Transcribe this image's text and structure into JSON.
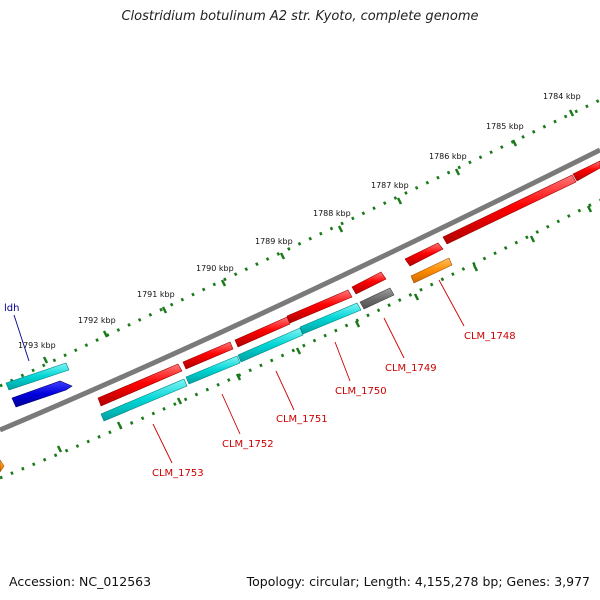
{
  "title": "Clostridium botulinum A2 str. Kyoto, complete genome",
  "footer": {
    "accession": "Accession: NC_012563",
    "topology": "Topology: circular; Length: 4,155,278 bp; Genes: 3,977"
  },
  "ticks": [
    "1784 kbp",
    "1785 kbp",
    "1786 kbp",
    "1787 kbp",
    "1788 kbp",
    "1789 kbp",
    "1790 kbp",
    "1791 kbp",
    "1792 kbp",
    "1793 kbp"
  ],
  "genes": [
    {
      "label": "CLM_1748",
      "color": "#ff8c00",
      "feature": "CDS"
    },
    {
      "label": "CLM_1749",
      "color": "#707070",
      "feature": "gene"
    },
    {
      "label": "CLM_1750",
      "color": "#00cccc",
      "feature": "CDS"
    },
    {
      "label": "CLM_1751",
      "color": "#00cccc",
      "feature": "CDS"
    },
    {
      "label": "CLM_1752",
      "color": "#00cccc",
      "feature": "CDS"
    },
    {
      "label": "CLM_1753",
      "color": "#00cccc",
      "feature": "CDS"
    },
    {
      "label": "ldh",
      "color": "#00008b",
      "feature": "CDS"
    }
  ],
  "colors": {
    "backbone": "#808080",
    "forward": "#ff0000",
    "reverse": "#00cccc",
    "ruler": "#1a7a1a",
    "label": "#cc0000",
    "special": "#00008b"
  }
}
